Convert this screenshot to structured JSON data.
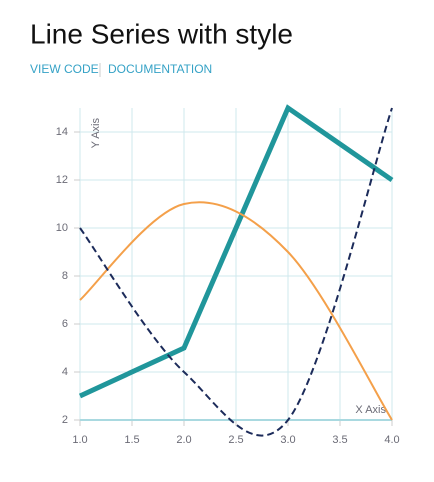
{
  "header": {
    "title": "Line Series with style",
    "links": [
      "VIEW CODE",
      "DOCUMENTATION"
    ]
  },
  "chart_data": {
    "type": "line",
    "x_label": "X Axis",
    "y_label": "Y Axis",
    "xlim": [
      1,
      4
    ],
    "ylim": [
      2,
      15
    ],
    "xticks": [
      {
        "value": 1,
        "label": "1.0"
      },
      {
        "value": 1.5,
        "label": "1.5"
      },
      {
        "value": 2,
        "label": "2.0"
      },
      {
        "value": 2.5,
        "label": "2.5"
      },
      {
        "value": 3,
        "label": "3.0"
      },
      {
        "value": 3.5,
        "label": "3.5"
      },
      {
        "value": 4,
        "label": "4.0"
      }
    ],
    "yticks": [
      2,
      4,
      6,
      8,
      10,
      12,
      14
    ],
    "grid": true,
    "series": [
      {
        "x": [
          1,
          2,
          3,
          4
        ],
        "values": [
          3,
          5,
          15,
          12
        ],
        "color": "#20969b",
        "stroke_width": 5,
        "dashed": false,
        "curve": false
      },
      {
        "x": [
          1,
          2,
          3,
          4
        ],
        "values": [
          7,
          11,
          9,
          2
        ],
        "color": "#f4a04a",
        "stroke_width": 2,
        "dashed": false,
        "curve": true
      },
      {
        "x": [
          1,
          2,
          3,
          4
        ],
        "values": [
          10,
          4,
          2,
          15
        ],
        "color": "#1c2b5a",
        "stroke_width": 2,
        "dashed": true,
        "curve": true
      }
    ]
  }
}
